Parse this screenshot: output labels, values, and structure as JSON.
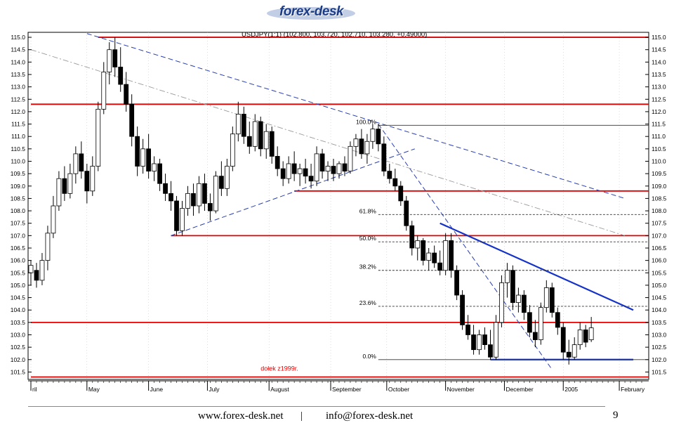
{
  "header": {
    "logo_text": "forex-desk"
  },
  "footer": {
    "website": "www.forex-desk.net",
    "separator": "|",
    "email": "info@forex-desk.net",
    "page_number": "9"
  },
  "colors": {
    "candle": "#000000",
    "support_resistance": "#e00000",
    "trend_dashed": "#2a3fb0",
    "trend_solid": "#1432c8",
    "fib_line": "#333333",
    "channel_gray": "#9a9a9a"
  },
  "chart_data": {
    "type": "candlestick",
    "title": "USDJPY(1:1) (102.800, 103.720, 102.710, 103.280, +0.49000)",
    "xlabel": "",
    "ylabel": "",
    "ylim": [
      101.2,
      115.2
    ],
    "y_ticks": [
      "101.5",
      "102.0",
      "102.5",
      "103.0",
      "103.5",
      "104.0",
      "104.5",
      "105.0",
      "105.5",
      "106.0",
      "106.5",
      "107.0",
      "107.5",
      "108.0",
      "108.5",
      "109.0",
      "109.5",
      "110.0",
      "110.5",
      "111.0",
      "111.5",
      "112.0",
      "112.5",
      "113.0",
      "113.5",
      "114.0",
      "114.5",
      "115.0"
    ],
    "x_labels": [
      {
        "label": "ril",
        "x": 0
      },
      {
        "label": "May",
        "x": 20
      },
      {
        "label": "June",
        "x": 42
      },
      {
        "label": "July",
        "x": 63
      },
      {
        "label": "August",
        "x": 85
      },
      {
        "label": "September",
        "x": 107
      },
      {
        "label": "October",
        "x": 127
      },
      {
        "label": "November",
        "x": 148
      },
      {
        "label": "December",
        "x": 169
      },
      {
        "label": "2005",
        "x": 190
      },
      {
        "label": "February",
        "x": 210
      }
    ],
    "x_range": [
      0,
      218
    ],
    "candles": [
      {
        "x": 0,
        "o": 105.5,
        "h": 106.0,
        "l": 105.0,
        "c": 105.8
      },
      {
        "x": 2,
        "o": 105.6,
        "h": 105.9,
        "l": 104.9,
        "c": 105.2
      },
      {
        "x": 4,
        "o": 105.2,
        "h": 106.3,
        "l": 105.0,
        "c": 106.0
      },
      {
        "x": 6,
        "o": 106.0,
        "h": 107.4,
        "l": 105.6,
        "c": 107.1
      },
      {
        "x": 8,
        "o": 107.1,
        "h": 108.6,
        "l": 106.9,
        "c": 108.2
      },
      {
        "x": 10,
        "o": 108.2,
        "h": 109.6,
        "l": 108.0,
        "c": 109.3
      },
      {
        "x": 12,
        "o": 109.3,
        "h": 109.8,
        "l": 108.4,
        "c": 108.7
      },
      {
        "x": 14,
        "o": 108.7,
        "h": 109.9,
        "l": 108.5,
        "c": 109.5
      },
      {
        "x": 16,
        "o": 109.5,
        "h": 110.6,
        "l": 109.1,
        "c": 110.3
      },
      {
        "x": 18,
        "o": 110.3,
        "h": 110.8,
        "l": 109.3,
        "c": 109.6
      },
      {
        "x": 20,
        "o": 109.6,
        "h": 109.9,
        "l": 108.3,
        "c": 108.8
      },
      {
        "x": 22,
        "o": 108.8,
        "h": 110.2,
        "l": 108.6,
        "c": 109.8
      },
      {
        "x": 24,
        "o": 109.8,
        "h": 112.4,
        "l": 109.6,
        "c": 112.1
      },
      {
        "x": 26,
        "o": 112.1,
        "h": 114.0,
        "l": 111.9,
        "c": 113.6
      },
      {
        "x": 28,
        "o": 113.6,
        "h": 114.8,
        "l": 113.1,
        "c": 114.5
      },
      {
        "x": 30,
        "o": 114.5,
        "h": 115.0,
        "l": 113.4,
        "c": 113.8
      },
      {
        "x": 32,
        "o": 113.8,
        "h": 114.6,
        "l": 112.8,
        "c": 113.1
      },
      {
        "x": 34,
        "o": 113.1,
        "h": 113.6,
        "l": 112.0,
        "c": 112.3
      },
      {
        "x": 36,
        "o": 112.3,
        "h": 112.7,
        "l": 110.6,
        "c": 111.0
      },
      {
        "x": 38,
        "o": 111.0,
        "h": 111.4,
        "l": 109.4,
        "c": 109.8
      },
      {
        "x": 40,
        "o": 109.8,
        "h": 110.9,
        "l": 109.5,
        "c": 110.5
      },
      {
        "x": 42,
        "o": 110.5,
        "h": 111.1,
        "l": 109.3,
        "c": 109.6
      },
      {
        "x": 44,
        "o": 109.6,
        "h": 110.2,
        "l": 109.2,
        "c": 109.9
      },
      {
        "x": 46,
        "o": 109.9,
        "h": 110.1,
        "l": 108.8,
        "c": 109.1
      },
      {
        "x": 48,
        "o": 109.1,
        "h": 109.5,
        "l": 108.4,
        "c": 108.7
      },
      {
        "x": 50,
        "o": 108.7,
        "h": 109.2,
        "l": 108.0,
        "c": 108.4
      },
      {
        "x": 52,
        "o": 108.4,
        "h": 108.6,
        "l": 107.0,
        "c": 107.2
      },
      {
        "x": 54,
        "o": 107.2,
        "h": 108.4,
        "l": 107.0,
        "c": 108.1
      },
      {
        "x": 56,
        "o": 108.1,
        "h": 109.0,
        "l": 107.8,
        "c": 108.7
      },
      {
        "x": 58,
        "o": 108.7,
        "h": 109.1,
        "l": 107.8,
        "c": 108.2
      },
      {
        "x": 60,
        "o": 108.2,
        "h": 109.4,
        "l": 107.9,
        "c": 109.1
      },
      {
        "x": 62,
        "o": 109.1,
        "h": 109.5,
        "l": 108.0,
        "c": 108.3
      },
      {
        "x": 64,
        "o": 108.3,
        "h": 108.7,
        "l": 107.6,
        "c": 108.0
      },
      {
        "x": 66,
        "o": 108.0,
        "h": 109.6,
        "l": 107.9,
        "c": 109.4
      },
      {
        "x": 68,
        "o": 109.4,
        "h": 110.0,
        "l": 108.6,
        "c": 108.9
      },
      {
        "x": 70,
        "o": 108.9,
        "h": 110.1,
        "l": 108.6,
        "c": 109.8
      },
      {
        "x": 72,
        "o": 109.8,
        "h": 111.4,
        "l": 109.6,
        "c": 111.1
      },
      {
        "x": 74,
        "o": 111.1,
        "h": 112.4,
        "l": 110.8,
        "c": 111.9
      },
      {
        "x": 76,
        "o": 111.9,
        "h": 112.2,
        "l": 110.7,
        "c": 111.0
      },
      {
        "x": 78,
        "o": 111.0,
        "h": 111.6,
        "l": 110.3,
        "c": 110.6
      },
      {
        "x": 80,
        "o": 110.6,
        "h": 111.9,
        "l": 110.4,
        "c": 111.6
      },
      {
        "x": 82,
        "o": 111.6,
        "h": 111.8,
        "l": 110.2,
        "c": 110.5
      },
      {
        "x": 84,
        "o": 110.5,
        "h": 111.5,
        "l": 110.1,
        "c": 111.2
      },
      {
        "x": 86,
        "o": 111.2,
        "h": 111.4,
        "l": 109.9,
        "c": 110.2
      },
      {
        "x": 88,
        "o": 110.2,
        "h": 110.6,
        "l": 109.4,
        "c": 109.7
      },
      {
        "x": 90,
        "o": 109.7,
        "h": 110.0,
        "l": 109.0,
        "c": 109.3
      },
      {
        "x": 92,
        "o": 109.3,
        "h": 110.2,
        "l": 109.1,
        "c": 109.9
      },
      {
        "x": 94,
        "o": 109.9,
        "h": 110.4,
        "l": 109.2,
        "c": 109.5
      },
      {
        "x": 96,
        "o": 109.5,
        "h": 109.9,
        "l": 109.0,
        "c": 109.7
      },
      {
        "x": 98,
        "o": 109.7,
        "h": 110.1,
        "l": 109.1,
        "c": 109.4
      },
      {
        "x": 100,
        "o": 109.4,
        "h": 109.9,
        "l": 108.9,
        "c": 109.2
      },
      {
        "x": 102,
        "o": 109.2,
        "h": 110.6,
        "l": 109.0,
        "c": 110.3
      },
      {
        "x": 104,
        "o": 110.3,
        "h": 110.5,
        "l": 109.3,
        "c": 109.6
      },
      {
        "x": 106,
        "o": 109.6,
        "h": 110.0,
        "l": 109.2,
        "c": 109.8
      },
      {
        "x": 108,
        "o": 109.8,
        "h": 110.1,
        "l": 109.2,
        "c": 109.5
      },
      {
        "x": 110,
        "o": 109.5,
        "h": 110.0,
        "l": 109.3,
        "c": 109.9
      },
      {
        "x": 112,
        "o": 109.9,
        "h": 110.2,
        "l": 109.4,
        "c": 109.6
      },
      {
        "x": 114,
        "o": 109.6,
        "h": 110.8,
        "l": 109.5,
        "c": 110.6
      },
      {
        "x": 116,
        "o": 110.6,
        "h": 111.1,
        "l": 110.2,
        "c": 110.9
      },
      {
        "x": 118,
        "o": 110.9,
        "h": 111.3,
        "l": 110.1,
        "c": 110.3
      },
      {
        "x": 120,
        "o": 110.3,
        "h": 111.1,
        "l": 109.9,
        "c": 110.8
      },
      {
        "x": 122,
        "o": 110.8,
        "h": 111.5,
        "l": 110.5,
        "c": 111.3
      },
      {
        "x": 124,
        "o": 111.3,
        "h": 111.5,
        "l": 110.4,
        "c": 110.7
      },
      {
        "x": 126,
        "o": 110.7,
        "h": 111.0,
        "l": 109.4,
        "c": 109.6
      },
      {
        "x": 128,
        "o": 109.6,
        "h": 109.9,
        "l": 109.1,
        "c": 109.3
      },
      {
        "x": 130,
        "o": 109.3,
        "h": 109.7,
        "l": 108.8,
        "c": 109.0
      },
      {
        "x": 132,
        "o": 109.0,
        "h": 109.2,
        "l": 108.2,
        "c": 108.4
      },
      {
        "x": 134,
        "o": 108.4,
        "h": 108.6,
        "l": 107.2,
        "c": 107.4
      },
      {
        "x": 136,
        "o": 107.4,
        "h": 107.6,
        "l": 106.2,
        "c": 106.5
      },
      {
        "x": 138,
        "o": 106.5,
        "h": 107.0,
        "l": 106.0,
        "c": 106.8
      },
      {
        "x": 140,
        "o": 106.8,
        "h": 106.9,
        "l": 105.8,
        "c": 106.0
      },
      {
        "x": 142,
        "o": 106.0,
        "h": 106.5,
        "l": 105.6,
        "c": 106.3
      },
      {
        "x": 144,
        "o": 106.3,
        "h": 106.6,
        "l": 105.7,
        "c": 105.9
      },
      {
        "x": 146,
        "o": 105.9,
        "h": 106.4,
        "l": 105.4,
        "c": 105.6
      },
      {
        "x": 148,
        "o": 105.6,
        "h": 107.1,
        "l": 105.4,
        "c": 106.8
      },
      {
        "x": 150,
        "o": 106.8,
        "h": 107.1,
        "l": 105.3,
        "c": 105.6
      },
      {
        "x": 152,
        "o": 105.6,
        "h": 105.8,
        "l": 104.4,
        "c": 104.6
      },
      {
        "x": 154,
        "o": 104.6,
        "h": 104.8,
        "l": 103.2,
        "c": 103.4
      },
      {
        "x": 156,
        "o": 103.4,
        "h": 103.8,
        "l": 102.8,
        "c": 103.0
      },
      {
        "x": 158,
        "o": 103.0,
        "h": 103.4,
        "l": 102.2,
        "c": 102.4
      },
      {
        "x": 160,
        "o": 102.4,
        "h": 103.2,
        "l": 102.2,
        "c": 103.0
      },
      {
        "x": 162,
        "o": 103.0,
        "h": 103.3,
        "l": 102.4,
        "c": 102.6
      },
      {
        "x": 164,
        "o": 102.6,
        "h": 103.2,
        "l": 102.0,
        "c": 102.1
      },
      {
        "x": 166,
        "o": 102.1,
        "h": 103.8,
        "l": 102.0,
        "c": 103.5
      },
      {
        "x": 168,
        "o": 103.5,
        "h": 105.4,
        "l": 103.3,
        "c": 105.1
      },
      {
        "x": 170,
        "o": 105.1,
        "h": 105.9,
        "l": 104.5,
        "c": 105.6
      },
      {
        "x": 172,
        "o": 105.6,
        "h": 105.8,
        "l": 104.0,
        "c": 104.3
      },
      {
        "x": 174,
        "o": 104.3,
        "h": 104.9,
        "l": 103.9,
        "c": 104.6
      },
      {
        "x": 176,
        "o": 104.6,
        "h": 104.8,
        "l": 103.6,
        "c": 103.9
      },
      {
        "x": 178,
        "o": 103.9,
        "h": 104.2,
        "l": 102.9,
        "c": 103.1
      },
      {
        "x": 180,
        "o": 103.1,
        "h": 103.6,
        "l": 102.5,
        "c": 102.8
      },
      {
        "x": 182,
        "o": 102.8,
        "h": 104.3,
        "l": 102.6,
        "c": 104.1
      },
      {
        "x": 184,
        "o": 104.1,
        "h": 105.2,
        "l": 103.9,
        "c": 104.9
      },
      {
        "x": 186,
        "o": 104.9,
        "h": 105.1,
        "l": 103.7,
        "c": 103.9
      },
      {
        "x": 188,
        "o": 103.9,
        "h": 104.1,
        "l": 103.0,
        "c": 103.3
      },
      {
        "x": 190,
        "o": 103.3,
        "h": 103.5,
        "l": 102.0,
        "c": 102.3
      },
      {
        "x": 192,
        "o": 102.3,
        "h": 102.8,
        "l": 101.8,
        "c": 102.1
      },
      {
        "x": 194,
        "o": 102.1,
        "h": 102.9,
        "l": 102.0,
        "c": 102.6
      },
      {
        "x": 196,
        "o": 102.6,
        "h": 103.5,
        "l": 102.4,
        "c": 103.2
      },
      {
        "x": 198,
        "o": 103.2,
        "h": 103.4,
        "l": 102.5,
        "c": 102.7
      },
      {
        "x": 200,
        "o": 102.8,
        "h": 103.72,
        "l": 102.71,
        "c": 103.28
      }
    ],
    "horizontal_levels": [
      {
        "y": 115.0,
        "x_from": 24,
        "style": "red"
      },
      {
        "y": 112.3,
        "x_from": 0,
        "style": "red"
      },
      {
        "y": 108.8,
        "x_from": 94,
        "style": "red"
      },
      {
        "y": 107.0,
        "x_from": 50,
        "style": "red"
      },
      {
        "y": 103.5,
        "x_from": 0,
        "style": "red"
      },
      {
        "y": 101.3,
        "x_from": 0,
        "style": "red"
      }
    ],
    "fib_levels": [
      {
        "label": "100.0%",
        "y": 111.45,
        "style": "solid"
      },
      {
        "label": "61.8%",
        "y": 107.85,
        "style": "dotted"
      },
      {
        "label": "50.0%",
        "y": 106.75,
        "style": "dotted"
      },
      {
        "label": "38.2%",
        "y": 105.6,
        "style": "dotted"
      },
      {
        "label": "23.6%",
        "y": 104.15,
        "style": "dotted"
      },
      {
        "label": "0.0%",
        "y": 102.0,
        "style": "solid"
      }
    ],
    "fib_x_from": 124,
    "trend_lines": [
      {
        "x1": 20,
        "y1": 115.15,
        "x2": 212,
        "y2": 108.5,
        "style": "dashed"
      },
      {
        "x1": 50,
        "y1": 107.0,
        "x2": 137,
        "y2": 110.5,
        "style": "dashed"
      },
      {
        "x1": 124,
        "y1": 111.5,
        "x2": 186,
        "y2": 101.6,
        "style": "dashed"
      },
      {
        "x1": 0,
        "y1": 114.5,
        "x2": 212,
        "y2": 107.0,
        "style": "gray-dashdot"
      },
      {
        "x1": 146,
        "y1": 107.5,
        "x2": 215,
        "y2": 104.0,
        "style": "solid"
      },
      {
        "x1": 164,
        "y1": 102.0,
        "x2": 215,
        "y2": 102.0,
        "style": "solid"
      }
    ],
    "annotations": [
      {
        "text": "dołek z1999r.",
        "x": 82,
        "y": 101.55
      }
    ]
  }
}
